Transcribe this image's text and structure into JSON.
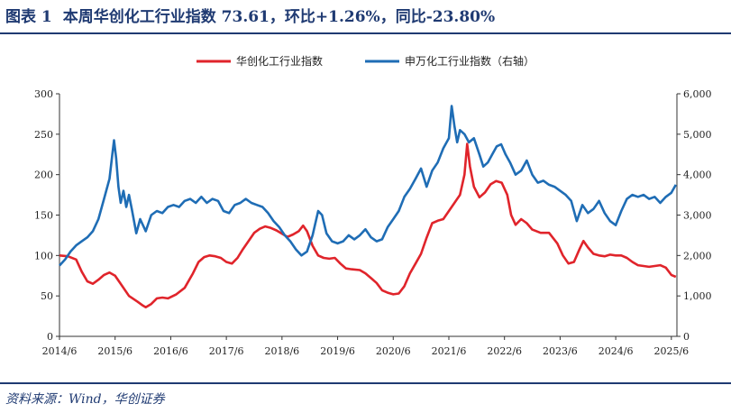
{
  "header": {
    "figure_no": "图表 1",
    "title": "本周华创化工行业指数 73.61，环比+1.26%，同比-23.80%"
  },
  "footer": {
    "source": "资料来源：Wind，华创证券"
  },
  "colors": {
    "accent": "#1f3a72",
    "red_series": "#e0242b",
    "blue_series": "#1f6db5"
  },
  "chart_data": {
    "type": "line",
    "title": "",
    "xlabel": "",
    "ylabel": "",
    "x_ticks": [
      "2014/6",
      "2015/6",
      "2016/6",
      "2017/6",
      "2018/6",
      "2019/6",
      "2020/6",
      "2021/6",
      "2022/6",
      "2023/6",
      "2024/6",
      "2025/6"
    ],
    "x_range": [
      2014.5,
      2025.6
    ],
    "y_left_range": [
      0,
      300
    ],
    "y_left_ticks": [
      "0",
      "50",
      "100",
      "150",
      "200",
      "250",
      "300"
    ],
    "y_right_range": [
      0,
      6000
    ],
    "y_right_ticks": [
      "0",
      "1,000",
      "2,000",
      "3,000",
      "4,000",
      "5,000",
      "6,000"
    ],
    "grid": false,
    "legend_position": "top-center",
    "series": [
      {
        "name": "华创化工行业指数",
        "axis": "left",
        "color": "#e0242b",
        "points": [
          [
            2014.5,
            100
          ],
          [
            2014.65,
            99
          ],
          [
            2014.8,
            95
          ],
          [
            2014.9,
            80
          ],
          [
            2015.0,
            68
          ],
          [
            2015.1,
            65
          ],
          [
            2015.2,
            70
          ],
          [
            2015.3,
            76
          ],
          [
            2015.4,
            79
          ],
          [
            2015.5,
            75
          ],
          [
            2015.6,
            65
          ],
          [
            2015.75,
            50
          ],
          [
            2015.9,
            43
          ],
          [
            2016.0,
            38
          ],
          [
            2016.05,
            36
          ],
          [
            2016.15,
            40
          ],
          [
            2016.25,
            47
          ],
          [
            2016.35,
            48
          ],
          [
            2016.45,
            47
          ],
          [
            2016.6,
            52
          ],
          [
            2016.75,
            60
          ],
          [
            2016.9,
            78
          ],
          [
            2017.0,
            92
          ],
          [
            2017.1,
            98
          ],
          [
            2017.2,
            100
          ],
          [
            2017.3,
            99
          ],
          [
            2017.4,
            97
          ],
          [
            2017.5,
            92
          ],
          [
            2017.6,
            90
          ],
          [
            2017.7,
            97
          ],
          [
            2017.8,
            108
          ],
          [
            2017.9,
            118
          ],
          [
            2018.0,
            128
          ],
          [
            2018.1,
            133
          ],
          [
            2018.2,
            136
          ],
          [
            2018.3,
            134
          ],
          [
            2018.4,
            131
          ],
          [
            2018.5,
            127
          ],
          [
            2018.6,
            123
          ],
          [
            2018.7,
            126
          ],
          [
            2018.8,
            130
          ],
          [
            2018.88,
            137
          ],
          [
            2018.95,
            130
          ],
          [
            2019.05,
            112
          ],
          [
            2019.15,
            100
          ],
          [
            2019.25,
            97
          ],
          [
            2019.35,
            96
          ],
          [
            2019.45,
            97
          ],
          [
            2019.55,
            90
          ],
          [
            2019.65,
            84
          ],
          [
            2019.75,
            83
          ],
          [
            2019.9,
            82
          ],
          [
            2020.0,
            78
          ],
          [
            2020.1,
            72
          ],
          [
            2020.2,
            66
          ],
          [
            2020.3,
            57
          ],
          [
            2020.4,
            54
          ],
          [
            2020.5,
            52
          ],
          [
            2020.6,
            53
          ],
          [
            2020.7,
            62
          ],
          [
            2020.8,
            78
          ],
          [
            2020.9,
            90
          ],
          [
            2021.0,
            102
          ],
          [
            2021.1,
            122
          ],
          [
            2021.2,
            140
          ],
          [
            2021.3,
            143
          ],
          [
            2021.4,
            145
          ],
          [
            2021.5,
            155
          ],
          [
            2021.6,
            165
          ],
          [
            2021.7,
            175
          ],
          [
            2021.78,
            200
          ],
          [
            2021.83,
            238
          ],
          [
            2021.88,
            210
          ],
          [
            2021.95,
            185
          ],
          [
            2022.05,
            172
          ],
          [
            2022.15,
            178
          ],
          [
            2022.25,
            188
          ],
          [
            2022.35,
            192
          ],
          [
            2022.45,
            190
          ],
          [
            2022.55,
            175
          ],
          [
            2022.62,
            150
          ],
          [
            2022.7,
            138
          ],
          [
            2022.8,
            145
          ],
          [
            2022.9,
            140
          ],
          [
            2023.0,
            132
          ],
          [
            2023.15,
            128
          ],
          [
            2023.3,
            128
          ],
          [
            2023.45,
            115
          ],
          [
            2023.55,
            100
          ],
          [
            2023.65,
            90
          ],
          [
            2023.75,
            92
          ],
          [
            2023.85,
            108
          ],
          [
            2023.92,
            118
          ],
          [
            2024.0,
            110
          ],
          [
            2024.1,
            102
          ],
          [
            2024.2,
            100
          ],
          [
            2024.3,
            99
          ],
          [
            2024.4,
            101
          ],
          [
            2024.5,
            100
          ],
          [
            2024.6,
            100
          ],
          [
            2024.7,
            97
          ],
          [
            2024.8,
            92
          ],
          [
            2024.9,
            88
          ],
          [
            2025.0,
            87
          ],
          [
            2025.1,
            86
          ],
          [
            2025.2,
            87
          ],
          [
            2025.3,
            88
          ],
          [
            2025.4,
            85
          ],
          [
            2025.5,
            76
          ],
          [
            2025.58,
            73.61
          ]
        ]
      },
      {
        "name": "申万化工行业指数（右轴）",
        "axis": "right",
        "color": "#1f6db5",
        "points": [
          [
            2014.5,
            1750
          ],
          [
            2014.6,
            1900
          ],
          [
            2014.7,
            2100
          ],
          [
            2014.8,
            2250
          ],
          [
            2014.9,
            2350
          ],
          [
            2015.0,
            2450
          ],
          [
            2015.1,
            2600
          ],
          [
            2015.2,
            2900
          ],
          [
            2015.3,
            3400
          ],
          [
            2015.4,
            3900
          ],
          [
            2015.45,
            4500
          ],
          [
            2015.48,
            4850
          ],
          [
            2015.52,
            4400
          ],
          [
            2015.56,
            3700
          ],
          [
            2015.6,
            3300
          ],
          [
            2015.65,
            3600
          ],
          [
            2015.7,
            3200
          ],
          [
            2015.75,
            3500
          ],
          [
            2015.8,
            3150
          ],
          [
            2015.88,
            2550
          ],
          [
            2015.95,
            2900
          ],
          [
            2016.05,
            2600
          ],
          [
            2016.15,
            3000
          ],
          [
            2016.25,
            3100
          ],
          [
            2016.35,
            3050
          ],
          [
            2016.45,
            3200
          ],
          [
            2016.55,
            3250
          ],
          [
            2016.65,
            3200
          ],
          [
            2016.75,
            3350
          ],
          [
            2016.85,
            3400
          ],
          [
            2016.95,
            3300
          ],
          [
            2017.05,
            3450
          ],
          [
            2017.15,
            3300
          ],
          [
            2017.25,
            3400
          ],
          [
            2017.35,
            3350
          ],
          [
            2017.45,
            3100
          ],
          [
            2017.55,
            3050
          ],
          [
            2017.65,
            3250
          ],
          [
            2017.75,
            3300
          ],
          [
            2017.85,
            3400
          ],
          [
            2017.95,
            3300
          ],
          [
            2018.05,
            3250
          ],
          [
            2018.15,
            3200
          ],
          [
            2018.25,
            3050
          ],
          [
            2018.35,
            2850
          ],
          [
            2018.45,
            2700
          ],
          [
            2018.55,
            2500
          ],
          [
            2018.65,
            2350
          ],
          [
            2018.75,
            2150
          ],
          [
            2018.85,
            2000
          ],
          [
            2018.95,
            2100
          ],
          [
            2019.05,
            2500
          ],
          [
            2019.15,
            3100
          ],
          [
            2019.22,
            3000
          ],
          [
            2019.3,
            2550
          ],
          [
            2019.4,
            2350
          ],
          [
            2019.5,
            2300
          ],
          [
            2019.6,
            2350
          ],
          [
            2019.7,
            2500
          ],
          [
            2019.8,
            2400
          ],
          [
            2019.9,
            2500
          ],
          [
            2020.0,
            2650
          ],
          [
            2020.1,
            2450
          ],
          [
            2020.2,
            2350
          ],
          [
            2020.3,
            2400
          ],
          [
            2020.4,
            2700
          ],
          [
            2020.5,
            2900
          ],
          [
            2020.6,
            3100
          ],
          [
            2020.7,
            3450
          ],
          [
            2020.8,
            3650
          ],
          [
            2020.9,
            3900
          ],
          [
            2021.0,
            4150
          ],
          [
            2021.1,
            3700
          ],
          [
            2021.2,
            4100
          ],
          [
            2021.3,
            4300
          ],
          [
            2021.4,
            4650
          ],
          [
            2021.5,
            4900
          ],
          [
            2021.55,
            5700
          ],
          [
            2021.6,
            5200
          ],
          [
            2021.65,
            4800
          ],
          [
            2021.7,
            5100
          ],
          [
            2021.78,
            5000
          ],
          [
            2021.86,
            4800
          ],
          [
            2021.95,
            4900
          ],
          [
            2022.05,
            4500
          ],
          [
            2022.12,
            4200
          ],
          [
            2022.2,
            4300
          ],
          [
            2022.28,
            4500
          ],
          [
            2022.36,
            4700
          ],
          [
            2022.44,
            4750
          ],
          [
            2022.52,
            4500
          ],
          [
            2022.6,
            4300
          ],
          [
            2022.7,
            4000
          ],
          [
            2022.8,
            4100
          ],
          [
            2022.9,
            4350
          ],
          [
            2023.0,
            4000
          ],
          [
            2023.1,
            3800
          ],
          [
            2023.2,
            3850
          ],
          [
            2023.3,
            3750
          ],
          [
            2023.4,
            3700
          ],
          [
            2023.5,
            3600
          ],
          [
            2023.6,
            3500
          ],
          [
            2023.7,
            3350
          ],
          [
            2023.8,
            2850
          ],
          [
            2023.9,
            3250
          ],
          [
            2024.0,
            3050
          ],
          [
            2024.1,
            3150
          ],
          [
            2024.2,
            3350
          ],
          [
            2024.3,
            3050
          ],
          [
            2024.4,
            2850
          ],
          [
            2024.5,
            2750
          ],
          [
            2024.6,
            3100
          ],
          [
            2024.7,
            3400
          ],
          [
            2024.8,
            3500
          ],
          [
            2024.9,
            3450
          ],
          [
            2025.0,
            3500
          ],
          [
            2025.1,
            3400
          ],
          [
            2025.2,
            3450
          ],
          [
            2025.3,
            3300
          ],
          [
            2025.4,
            3450
          ],
          [
            2025.5,
            3550
          ],
          [
            2025.58,
            3750
          ]
        ]
      }
    ]
  }
}
